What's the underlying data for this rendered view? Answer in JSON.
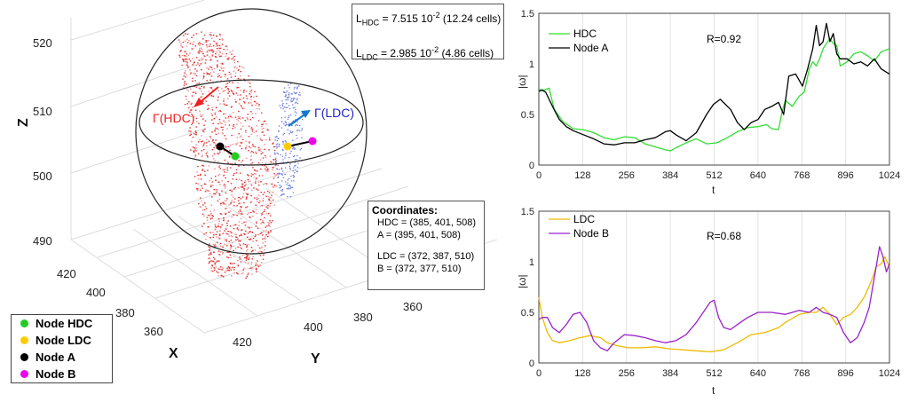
{
  "left_panel": {
    "axis_labels": {
      "z": "Z",
      "x": "X",
      "y": "Y"
    },
    "z_ticks": [
      "520",
      "510",
      "500",
      "490"
    ],
    "x_ticks": [
      "420",
      "400",
      "380",
      "360"
    ],
    "y_ticks": [
      "420",
      "400",
      "380",
      "360"
    ],
    "lengths": {
      "hdc": {
        "prefix": "L",
        "sub": "HDC",
        "value": " = 7.515 10",
        "exp": "-2",
        "cells": " (12.24 cells)"
      },
      "ldc": {
        "prefix": "L",
        "sub": "LDC",
        "value": " = 2.985 10",
        "exp": "-2",
        "cells": " (4.86 cells)"
      }
    },
    "gamma_hdc": "Γ(HDC)",
    "gamma_ldc": "Γ(LDC)",
    "coordinates": {
      "title": "Coordinates:",
      "hdc": "HDC = (385, 401, 508)",
      "a": "A = (395, 401, 508)",
      "ldc": "LDC = (372, 387, 510)",
      "b": "B = (372, 377, 510)"
    },
    "legend": [
      {
        "label": "Node HDC",
        "color": "#22cc22"
      },
      {
        "label": "Node LDC",
        "color": "#ffcc00"
      },
      {
        "label": "Node A",
        "color": "#000000"
      },
      {
        "label": "Node B",
        "color": "#ee00ee"
      }
    ]
  },
  "chart_data": [
    {
      "type": "line",
      "xlabel": "t",
      "ylabel": "|ω|",
      "xlim": [
        0,
        1024
      ],
      "ylim": [
        0,
        1.5
      ],
      "xticks": [
        0,
        128,
        256,
        384,
        512,
        640,
        768,
        896,
        1024
      ],
      "yticks": [
        0,
        0.5,
        1,
        1.5
      ],
      "grid": "vertical",
      "legend_position": "top-left",
      "annotation": "R=0.92",
      "series": [
        {
          "name": "HDC",
          "color": "#33dd33",
          "x": [
            0,
            15,
            30,
            45,
            70,
            100,
            130,
            160,
            190,
            220,
            250,
            280,
            310,
            340,
            370,
            385,
            400,
            430,
            460,
            490,
            520,
            550,
            580,
            610,
            640,
            665,
            680,
            700,
            710,
            720,
            740,
            760,
            775,
            790,
            800,
            810,
            820,
            830,
            840,
            850,
            860,
            870,
            880,
            900,
            920,
            940,
            960,
            980,
            1000,
            1024
          ],
          "values": [
            0.75,
            0.74,
            0.76,
            0.55,
            0.43,
            0.36,
            0.35,
            0.32,
            0.27,
            0.25,
            0.28,
            0.27,
            0.21,
            0.18,
            0.15,
            0.14,
            0.17,
            0.22,
            0.26,
            0.21,
            0.22,
            0.27,
            0.33,
            0.37,
            0.38,
            0.4,
            0.36,
            0.35,
            0.52,
            0.64,
            0.58,
            0.68,
            0.72,
            0.95,
            1.02,
            0.98,
            1.05,
            1.15,
            1.2,
            1.25,
            1.2,
            1.18,
            0.98,
            1.02,
            1.1,
            1.12,
            1.08,
            1.03,
            1.12,
            1.15
          ]
        },
        {
          "name": "Node A",
          "color": "#000000",
          "x": [
            0,
            10,
            20,
            40,
            60,
            80,
            100,
            130,
            160,
            190,
            220,
            250,
            280,
            310,
            340,
            370,
            384,
            400,
            430,
            460,
            490,
            510,
            530,
            560,
            580,
            600,
            620,
            640,
            660,
            680,
            700,
            715,
            730,
            750,
            770,
            785,
            800,
            810,
            820,
            830,
            840,
            850,
            860,
            870,
            880,
            900,
            920,
            940,
            960,
            980,
            1000,
            1024
          ],
          "values": [
            0.73,
            0.74,
            0.72,
            0.58,
            0.45,
            0.38,
            0.34,
            0.3,
            0.26,
            0.21,
            0.2,
            0.22,
            0.22,
            0.25,
            0.27,
            0.33,
            0.34,
            0.3,
            0.24,
            0.32,
            0.5,
            0.6,
            0.65,
            0.55,
            0.42,
            0.35,
            0.42,
            0.45,
            0.55,
            0.58,
            0.62,
            0.5,
            0.88,
            0.9,
            0.78,
            0.95,
            1.15,
            1.38,
            1.18,
            1.22,
            1.4,
            1.22,
            1.3,
            1.1,
            1.05,
            1.05,
            1.0,
            1.02,
            0.98,
            1.05,
            0.95,
            0.9
          ]
        }
      ]
    },
    {
      "type": "line",
      "xlabel": "t",
      "ylabel": "|ω|",
      "xlim": [
        0,
        1024
      ],
      "ylim": [
        0,
        1.5
      ],
      "xticks": [
        0,
        128,
        256,
        384,
        512,
        640,
        768,
        896,
        1024
      ],
      "yticks": [
        0,
        0.5,
        1,
        1.5
      ],
      "grid": "vertical",
      "legend_position": "top-left",
      "annotation": "R=0.68",
      "series": [
        {
          "name": "LDC",
          "color": "#eebb00",
          "x": [
            0,
            10,
            25,
            40,
            60,
            90,
            120,
            150,
            180,
            200,
            230,
            260,
            300,
            340,
            380,
            420,
            460,
            500,
            540,
            580,
            620,
            660,
            700,
            720,
            760,
            790,
            810,
            830,
            850,
            870,
            890,
            910,
            930,
            950,
            970,
            985,
            1000,
            1010,
            1024
          ],
          "values": [
            0.65,
            0.45,
            0.3,
            0.22,
            0.2,
            0.22,
            0.25,
            0.27,
            0.25,
            0.2,
            0.17,
            0.15,
            0.15,
            0.16,
            0.14,
            0.13,
            0.12,
            0.11,
            0.13,
            0.2,
            0.28,
            0.3,
            0.35,
            0.4,
            0.48,
            0.5,
            0.5,
            0.55,
            0.48,
            0.38,
            0.45,
            0.48,
            0.55,
            0.65,
            0.8,
            0.95,
            0.98,
            1.05,
            0.95
          ]
        },
        {
          "name": "Node B",
          "color": "#9922cc",
          "x": [
            0,
            10,
            25,
            40,
            60,
            80,
            100,
            120,
            140,
            160,
            180,
            200,
            220,
            250,
            280,
            310,
            340,
            370,
            400,
            430,
            460,
            480,
            500,
            512,
            525,
            540,
            560,
            580,
            610,
            640,
            680,
            720,
            760,
            790,
            810,
            830,
            850,
            870,
            890,
            910,
            930,
            950,
            965,
            975,
            985,
            995,
            1005,
            1015,
            1024
          ],
          "values": [
            0.43,
            0.45,
            0.45,
            0.35,
            0.3,
            0.38,
            0.48,
            0.5,
            0.4,
            0.22,
            0.15,
            0.12,
            0.2,
            0.28,
            0.27,
            0.25,
            0.22,
            0.2,
            0.22,
            0.28,
            0.4,
            0.5,
            0.6,
            0.62,
            0.45,
            0.35,
            0.33,
            0.38,
            0.45,
            0.5,
            0.5,
            0.48,
            0.52,
            0.5,
            0.55,
            0.5,
            0.48,
            0.45,
            0.3,
            0.2,
            0.25,
            0.4,
            0.55,
            0.75,
            0.95,
            1.15,
            1.05,
            0.9,
            0.98
          ]
        }
      ]
    }
  ]
}
